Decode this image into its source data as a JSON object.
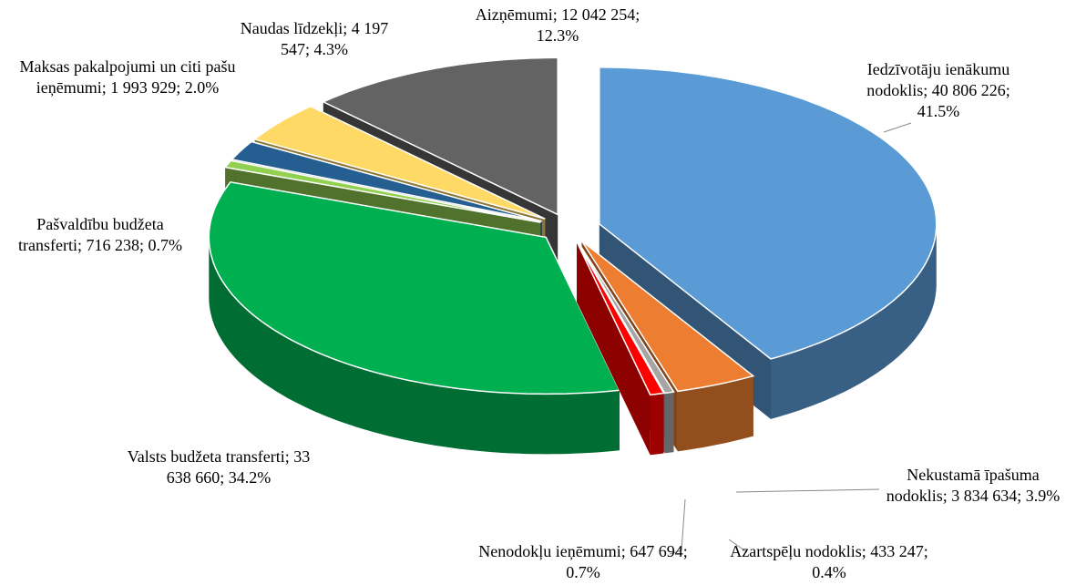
{
  "chart_data": {
    "type": "pie3d",
    "categories": [
      "Iedzīvotāju ienākumu nodoklis",
      "Nekustamā īpašuma nodoklis",
      "Azartspēļu nodoklis",
      "Nenodokļu ieņēmumi",
      "Valsts budžeta transferti",
      "Pašvaldību budžeta transferti",
      "Maksas pakalpojumi un citi pašu ieņēmumi",
      "Naudas līdzekļi",
      "Aizņēmumi"
    ],
    "values": [
      40806226,
      3834634,
      433247,
      647694,
      33638660,
      716238,
      1993929,
      4197547,
      12042254
    ],
    "value_labels": [
      "40 806 226",
      "3 834 634",
      "433 247",
      "647 694",
      "33 638 660",
      "716 238",
      "1 993 929",
      "4 197 547",
      "12 042 254"
    ],
    "percent_labels": [
      "41.5%",
      "3.9%",
      "0.4%",
      "0.7%",
      "34.2%",
      "0.7%",
      "2.0%",
      "4.3%",
      "12.3%"
    ],
    "colors": [
      "#5b9bd5",
      "#ed7d31",
      "#a5a5a5",
      "#ff0000",
      "#00b050",
      "#92d050",
      "#255e91",
      "#ffd966",
      "#636363"
    ]
  }
}
